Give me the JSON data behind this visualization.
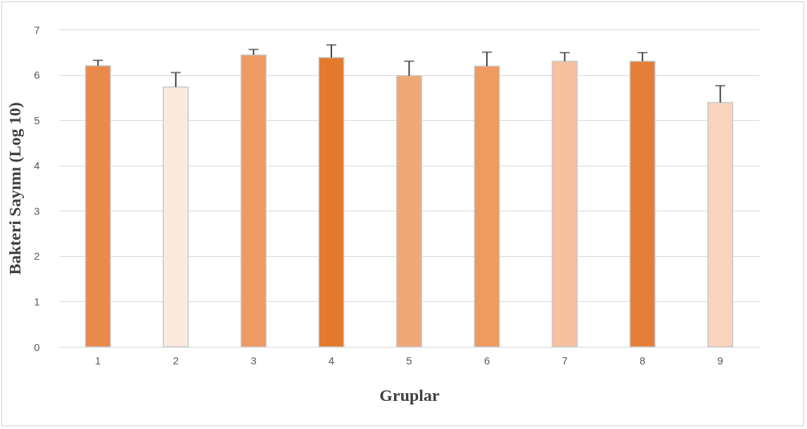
{
  "chart_data": {
    "type": "bar",
    "xlabel": "Gruplar",
    "ylabel": "Bakteri Sayımı (Log 10)",
    "categories": [
      "1",
      "2",
      "3",
      "4",
      "5",
      "6",
      "7",
      "8",
      "9"
    ],
    "values": [
      6.2,
      5.73,
      6.44,
      6.38,
      5.98,
      6.19,
      6.3,
      6.3,
      5.39
    ],
    "errors": [
      [
        6.2,
        6.32
      ],
      [
        5.73,
        6.05
      ],
      [
        6.44,
        6.56
      ],
      [
        6.38,
        6.66
      ],
      [
        5.98,
        6.3
      ],
      [
        6.19,
        6.5
      ],
      [
        6.3,
        6.49
      ],
      [
        6.3,
        6.49
      ],
      [
        5.39,
        5.76
      ]
    ],
    "colors": [
      "#e9894a",
      "#fbe9dc",
      "#ee9a63",
      "#e37a2e",
      "#f0a878",
      "#ee9a60",
      "#f5c19f",
      "#e57e38",
      "#f8d4bc"
    ],
    "ylim": [
      0,
      7
    ],
    "yticks": [
      0,
      1,
      2,
      3,
      4,
      5,
      6,
      7
    ],
    "grid": "y",
    "legend": false
  }
}
